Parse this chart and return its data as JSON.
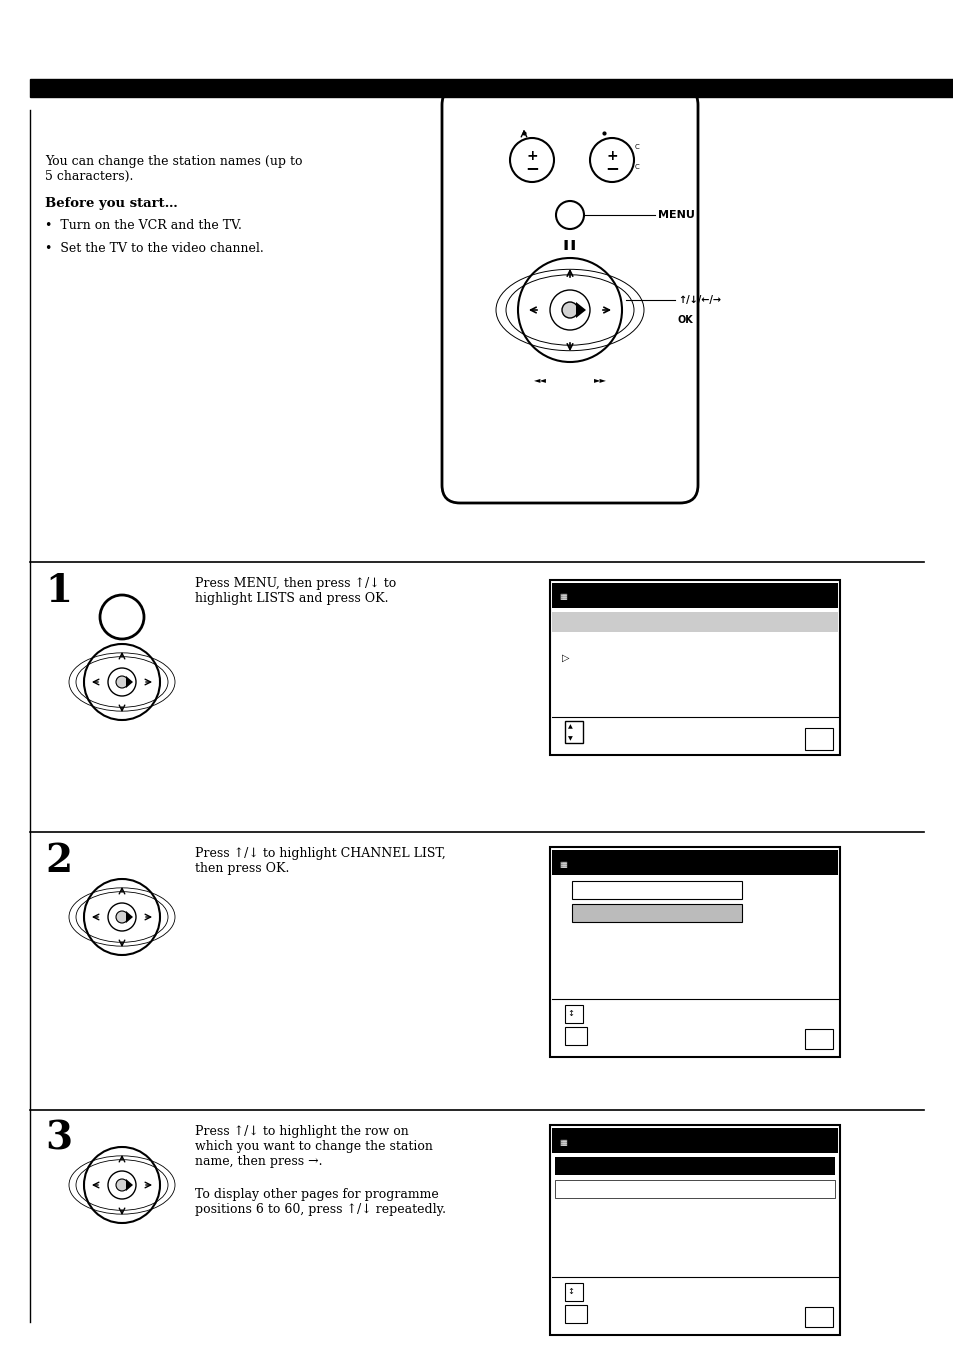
{
  "bg_color": "#ffffff",
  "text_color": "#000000",
  "page_width": 9.54,
  "page_height": 13.52,
  "intro_text": "You can change the station names (up to\n5 characters).",
  "before_text": "Before you start…",
  "bullet1": "Turn on the VCR and the TV.",
  "bullet2": "Set the TV to the video channel.",
  "step1_num": "1",
  "step1_text": "Press MENU, then press ↑/↓ to\nhighlight LISTS and press OK.",
  "step2_num": "2",
  "step2_text": "Press ↑/↓ to highlight CHANNEL LIST,\nthen press OK.",
  "step3_num": "3",
  "step3_text": "Press ↑/↓ to highlight the row on\nwhich you want to change the station\nname, then press →.",
  "step3_text2": "To display other pages for programme\npositions 6 to 60, press ↑/↓ repeatedly.",
  "menu_label": "MENU",
  "ok_label": "↑/↓/←/→"
}
